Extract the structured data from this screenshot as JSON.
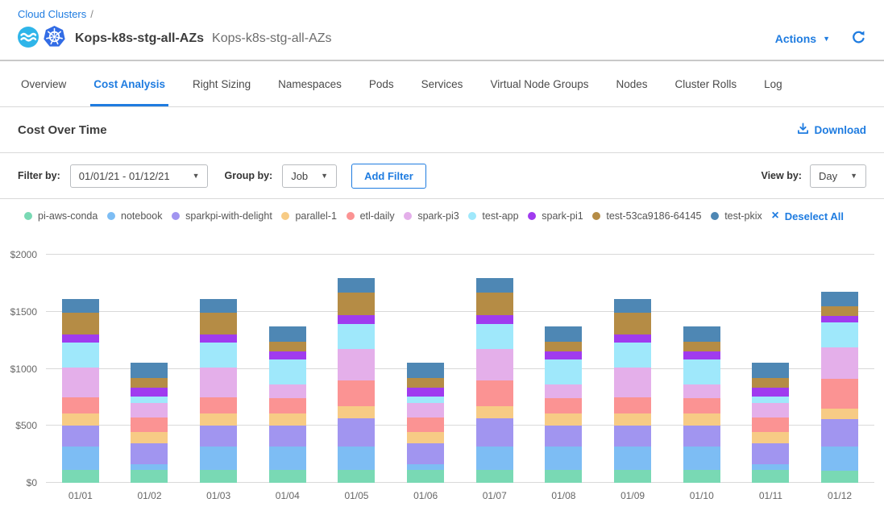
{
  "breadcrumb": {
    "link_label": "Cloud Clusters",
    "separator": "/"
  },
  "header": {
    "title": "Kops-k8s-stg-all-AZs",
    "subtitle": "Kops-k8s-stg-all-AZs",
    "actions_label": "Actions",
    "caret": "▼"
  },
  "tabs": [
    {
      "label": "Overview",
      "active": false
    },
    {
      "label": "Cost Analysis",
      "active": true
    },
    {
      "label": "Right Sizing",
      "active": false
    },
    {
      "label": "Namespaces",
      "active": false
    },
    {
      "label": "Pods",
      "active": false
    },
    {
      "label": "Services",
      "active": false
    },
    {
      "label": "Virtual Node Groups",
      "active": false
    },
    {
      "label": "Nodes",
      "active": false
    },
    {
      "label": "Cluster Rolls",
      "active": false
    },
    {
      "label": "Log",
      "active": false
    }
  ],
  "section": {
    "title": "Cost Over Time",
    "download_label": "Download"
  },
  "filter_bar": {
    "filter_by_label": "Filter by:",
    "date_range_value": "01/01/21 - 01/12/21",
    "group_by_label": "Group by:",
    "group_by_value": "Job",
    "add_filter_label": "Add Filter",
    "view_by_label": "View by:",
    "view_by_value": "Day",
    "caret": "▼"
  },
  "legend": {
    "deselect_all_label": "Deselect All",
    "deselect_icon": "×"
  },
  "colors": {
    "accent_blue": "#1F7CE0",
    "ocean_icon_blue": "#2FB5E9",
    "kubernetes_blue": "#326CE5"
  },
  "chart_data": {
    "type": "bar",
    "stacked": true,
    "title": "Cost Over Time",
    "xlabel": "",
    "ylabel": "",
    "ylim": [
      0,
      2000
    ],
    "yticks": [
      0,
      500,
      1000,
      1500,
      2000
    ],
    "ytick_labels": [
      "$0",
      "$500",
      "$1000",
      "$1500",
      "$2000"
    ],
    "grid": true,
    "legend_position": "top",
    "categories": [
      "01/01",
      "01/02",
      "01/03",
      "01/04",
      "01/05",
      "01/06",
      "01/07",
      "01/08",
      "01/09",
      "01/10",
      "01/11",
      "01/12"
    ],
    "series": [
      {
        "name": "pi-aws-conda",
        "color": "#79D9B4",
        "values": [
          115,
          115,
          115,
          115,
          115,
          115,
          115,
          115,
          115,
          115,
          115,
          105
        ]
      },
      {
        "name": "notebook",
        "color": "#7DBDF4",
        "values": [
          205,
          45,
          205,
          205,
          205,
          45,
          205,
          205,
          205,
          205,
          45,
          210
        ]
      },
      {
        "name": "sparkpi-with-delight",
        "color": "#A195F0",
        "values": [
          185,
          185,
          185,
          185,
          245,
          185,
          245,
          185,
          185,
          185,
          185,
          245
        ]
      },
      {
        "name": "parallel-1",
        "color": "#F7CB85",
        "values": [
          105,
          100,
          105,
          100,
          105,
          100,
          105,
          100,
          105,
          100,
          100,
          90
        ]
      },
      {
        "name": "etl-daily",
        "color": "#FB9393",
        "values": [
          140,
          130,
          140,
          140,
          230,
          130,
          230,
          140,
          140,
          140,
          130,
          260
        ]
      },
      {
        "name": "spark-pi3",
        "color": "#E4AFEA",
        "values": [
          260,
          125,
          260,
          115,
          275,
          125,
          275,
          115,
          260,
          115,
          125,
          275
        ]
      },
      {
        "name": "test-app",
        "color": "#9FE8FB",
        "values": [
          220,
          60,
          220,
          225,
          220,
          60,
          220,
          225,
          220,
          225,
          60,
          220
        ]
      },
      {
        "name": "spark-pi1",
        "color": "#A03BEF",
        "values": [
          70,
          75,
          70,
          65,
          75,
          75,
          75,
          65,
          70,
          65,
          75,
          60
        ]
      },
      {
        "name": "test-53ca9186-64145",
        "color": "#B58C45",
        "values": [
          190,
          85,
          190,
          90,
          195,
          85,
          195,
          90,
          190,
          90,
          85,
          80
        ]
      },
      {
        "name": "test-pkix",
        "color": "#4E87B4",
        "values": [
          125,
          130,
          125,
          135,
          130,
          130,
          130,
          135,
          125,
          135,
          130,
          130
        ]
      }
    ]
  }
}
